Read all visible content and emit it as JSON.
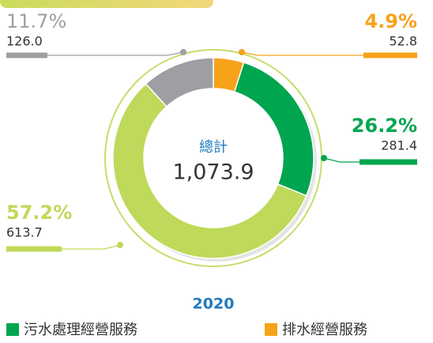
{
  "chart_data": {
    "type": "donut",
    "year": "2020",
    "total": {
      "label": "總計",
      "value": {
        "value": 1073.9,
        "label": "1,073.9"
      }
    },
    "values": [
      52.8,
      281.4,
      613.7,
      126.0
    ],
    "value_labels": [
      "52.8",
      "281.4",
      "613.7",
      "126.0"
    ],
    "percents": [
      4.9,
      26.2,
      57.2,
      11.7
    ],
    "percent_labels": [
      "4.9%",
      "26.2%",
      "57.2%",
      "11.7%"
    ],
    "colors": [
      "#f7a21b",
      "#00a54f",
      "#bfd95a",
      "#9d9fa2"
    ],
    "legend": [
      {
        "name": "污水處理經營服務",
        "color": "#00a54f"
      },
      {
        "name": "排水經營服務",
        "color": "#f7a21b"
      }
    ]
  }
}
